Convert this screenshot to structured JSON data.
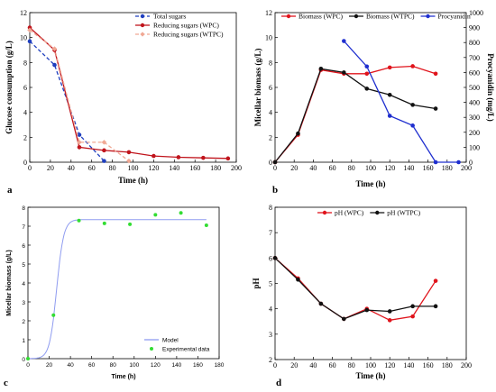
{
  "chart_data": [
    {
      "panel": "a",
      "type": "line",
      "ylabel": "Glucose consumption (g/L)",
      "xlabel": "Time (h)",
      "xlim": [
        0,
        200
      ],
      "ylim": [
        0,
        12
      ],
      "xticks": [
        0,
        20,
        40,
        60,
        80,
        100,
        120,
        140,
        160,
        180,
        200
      ],
      "yticks": [
        0,
        2,
        4,
        6,
        8,
        10,
        12
      ],
      "legend_position": "top-right",
      "series": [
        {
          "name": "Total sugars",
          "color": "#1f3fbf",
          "dash": "dashed",
          "marker": "circle",
          "x": [
            0,
            24,
            48,
            72
          ],
          "y": [
            9.7,
            7.8,
            2.2,
            0.1
          ]
        },
        {
          "name": "Reducing sugars (WPC)",
          "color": "#c0141c",
          "dash": "solid",
          "marker": "circle",
          "x": [
            0,
            24,
            48,
            72,
            96,
            120,
            144,
            168,
            192
          ],
          "y": [
            10.8,
            9.0,
            1.2,
            0.95,
            0.8,
            0.5,
            0.4,
            0.35,
            0.3
          ]
        },
        {
          "name": "Reducing sugars (WTPC)",
          "color": "#f0a894",
          "dash": "dashed",
          "marker": "diamond",
          "x": [
            0,
            24,
            48,
            72,
            96
          ],
          "y": [
            10.6,
            9.1,
            1.6,
            1.6,
            0.1
          ]
        }
      ]
    },
    {
      "panel": "b",
      "type": "line",
      "ylabel": "Micellar biomass (g/L)",
      "ylabel_right": "Procyanidin (mg/L)",
      "xlabel": "Time (h)",
      "xlim": [
        0,
        200
      ],
      "ylim": [
        0,
        12
      ],
      "ylim_right": [
        0,
        1000
      ],
      "xticks": [
        0,
        20,
        40,
        60,
        80,
        100,
        120,
        140,
        160,
        180,
        200
      ],
      "yticks": [
        0,
        2,
        4,
        6,
        8,
        10,
        12
      ],
      "yticks_right": [
        0,
        100,
        200,
        300,
        400,
        500,
        600,
        700,
        800,
        900,
        1000
      ],
      "legend_position": "top",
      "series": [
        {
          "name": "Biomass (WPC)",
          "color": "#e0141c",
          "axis": "left",
          "marker": "circle",
          "x": [
            0,
            24,
            48,
            72,
            96,
            120,
            144,
            168
          ],
          "y": [
            0,
            2.2,
            7.4,
            7.1,
            7.1,
            7.6,
            7.7,
            7.1
          ]
        },
        {
          "name": "Biomass (WTPC)",
          "color": "#111111",
          "axis": "left",
          "marker": "circle",
          "x": [
            0,
            24,
            48,
            72,
            96,
            120,
            144,
            168
          ],
          "y": [
            0,
            2.3,
            7.5,
            7.2,
            5.9,
            5.4,
            4.6,
            4.3
          ]
        },
        {
          "name": "Procyanidin",
          "color": "#1f2fcf",
          "axis": "right",
          "marker": "circle",
          "x": [
            72,
            96,
            120,
            144,
            168,
            192
          ],
          "y": [
            810,
            640,
            310,
            245,
            0,
            0
          ]
        }
      ]
    },
    {
      "panel": "c",
      "type": "line",
      "ylabel": "Micellar biomass (g/L)",
      "xlabel": "Time (h)",
      "xlim": [
        0,
        180
      ],
      "ylim": [
        0,
        8
      ],
      "xticks": [
        0,
        20,
        40,
        60,
        80,
        100,
        120,
        140,
        160,
        180
      ],
      "yticks": [
        0,
        1,
        2,
        3,
        4,
        5,
        6,
        7,
        8
      ],
      "legend_position": "bottom-right",
      "series": [
        {
          "name": "Model",
          "color": "#8f9cf0",
          "style": "line",
          "max": 7.35,
          "rate": 0.3,
          "midpoint": 27,
          "x_end": 168
        },
        {
          "name": "Experimental data",
          "color": "#33dd33",
          "style": "scatter",
          "x": [
            0,
            24,
            48,
            72,
            96,
            120,
            144,
            168
          ],
          "y": [
            0,
            2.3,
            7.3,
            7.15,
            7.1,
            7.6,
            7.7,
            7.05
          ]
        }
      ]
    },
    {
      "panel": "d",
      "type": "line",
      "ylabel": "pH",
      "xlabel": "Time (h)",
      "xlim": [
        0,
        200
      ],
      "ylim": [
        2,
        8
      ],
      "xticks": [
        0,
        20,
        40,
        60,
        80,
        100,
        120,
        140,
        160,
        180,
        200
      ],
      "yticks": [
        2,
        3,
        4,
        5,
        6,
        7,
        8
      ],
      "legend_position": "top",
      "series": [
        {
          "name": "pH (WPC)",
          "color": "#e0141c",
          "marker": "circle",
          "x": [
            0,
            24,
            48,
            72,
            96,
            120,
            144,
            168
          ],
          "y": [
            6.0,
            5.2,
            4.2,
            3.6,
            4.0,
            3.55,
            3.7,
            5.1
          ]
        },
        {
          "name": "pH (WTPC)",
          "color": "#111111",
          "marker": "circle",
          "x": [
            0,
            24,
            48,
            72,
            96,
            120,
            144,
            168
          ],
          "y": [
            6.0,
            5.15,
            4.2,
            3.6,
            3.95,
            3.9,
            4.1,
            4.1
          ]
        }
      ]
    }
  ]
}
